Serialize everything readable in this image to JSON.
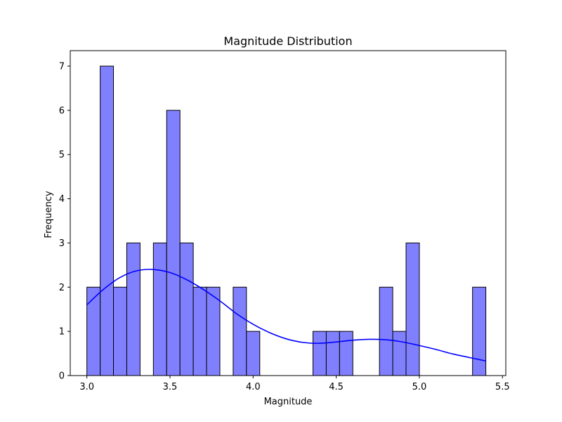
{
  "chart_data": {
    "type": "bar",
    "subtype": "histogram",
    "title": "Magnitude Distribution",
    "xlabel": "Magnitude",
    "ylabel": "Frequency",
    "xlim": [
      2.9,
      5.52
    ],
    "ylim": [
      0,
      7.35
    ],
    "xticks": [
      3.0,
      3.5,
      4.0,
      4.5,
      5.0,
      5.5
    ],
    "xtick_labels": [
      "3.0",
      "3.5",
      "4.0",
      "4.5",
      "5.0",
      "5.5"
    ],
    "yticks": [
      0,
      1,
      2,
      3,
      4,
      5,
      6,
      7
    ],
    "ytick_labels": [
      "0",
      "1",
      "2",
      "3",
      "4",
      "5",
      "6",
      "7"
    ],
    "bin_start": 3.0,
    "bin_width": 0.08,
    "counts": [
      2,
      7,
      2,
      3,
      0,
      3,
      6,
      3,
      2,
      2,
      0,
      2,
      1,
      0,
      0,
      0,
      0,
      1,
      1,
      1,
      0,
      0,
      2,
      1,
      3,
      0,
      0,
      0,
      0,
      2
    ],
    "kde": {
      "name": "KDE",
      "x": [
        3.0,
        3.1,
        3.2,
        3.3,
        3.4,
        3.5,
        3.6,
        3.7,
        3.8,
        3.9,
        4.0,
        4.1,
        4.2,
        4.3,
        4.4,
        4.5,
        4.6,
        4.7,
        4.8,
        4.9,
        5.0,
        5.1,
        5.2,
        5.3,
        5.4
      ],
      "y": [
        1.6,
        1.95,
        2.22,
        2.37,
        2.4,
        2.33,
        2.17,
        1.95,
        1.69,
        1.4,
        1.16,
        0.97,
        0.83,
        0.75,
        0.73,
        0.76,
        0.8,
        0.82,
        0.81,
        0.76,
        0.68,
        0.59,
        0.49,
        0.41,
        0.33
      ]
    },
    "colors": {
      "bar_fill": "#8080ff",
      "bar_edge": "#000000",
      "kde_line": "#0000ff"
    },
    "grid": false
  }
}
